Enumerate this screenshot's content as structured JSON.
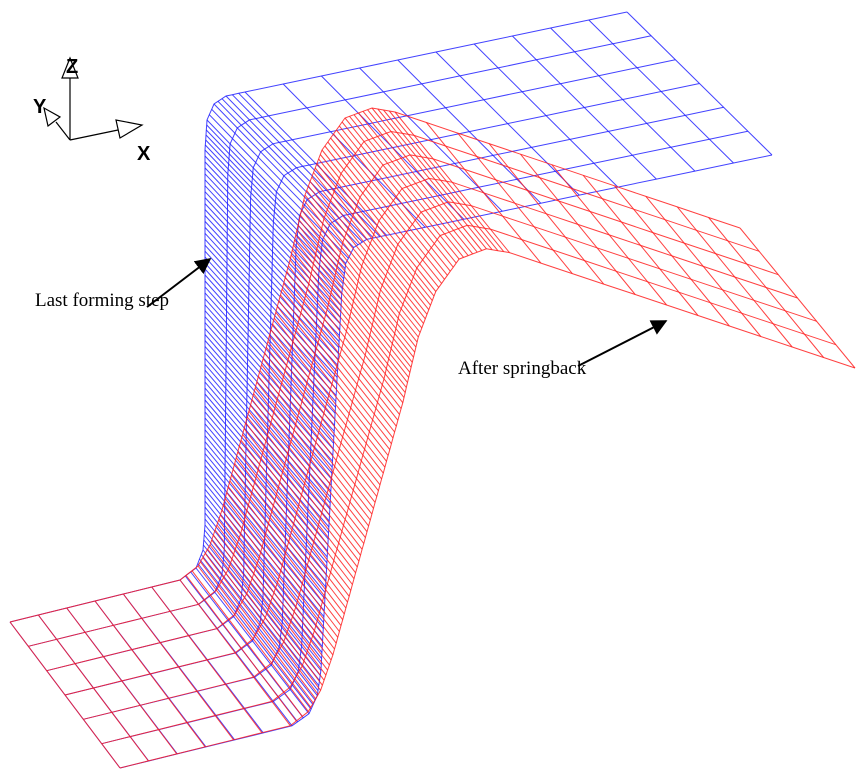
{
  "axis_labels": {
    "z": "Z",
    "y": "Y",
    "x": "X"
  },
  "annotations": {
    "last_forming_step": "Last forming step",
    "after_springback": "After springback"
  }
}
